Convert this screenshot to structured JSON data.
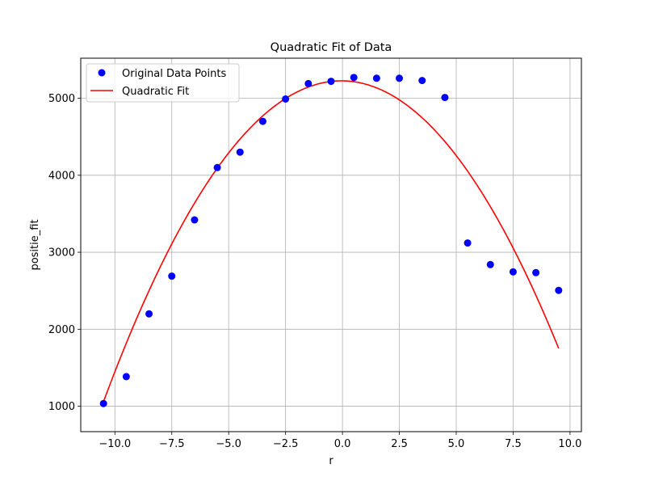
{
  "chart_data": {
    "type": "scatter",
    "title": "Quadratic Fit of Data",
    "xlabel": "r",
    "ylabel": "positie_fit",
    "xlim": [
      -11.5,
      10.5
    ],
    "ylim": [
      670,
      5520
    ],
    "xticks": [
      -10.0,
      -7.5,
      -5.0,
      -2.5,
      0.0,
      2.5,
      5.0,
      7.5,
      10.0
    ],
    "xtick_labels": [
      "−10.0",
      "−7.5",
      "−5.0",
      "−2.5",
      "0.0",
      "2.5",
      "5.0",
      "7.5",
      "10.0"
    ],
    "yticks": [
      1000,
      2000,
      3000,
      4000,
      5000
    ],
    "ytick_labels": [
      "1000",
      "2000",
      "3000",
      "4000",
      "5000"
    ],
    "grid": true,
    "legend_position": "top-left",
    "series": [
      {
        "name": "Original Data Points",
        "kind": "scatter",
        "color": "#0000ff",
        "x": [
          -10.5,
          -9.5,
          -8.5,
          -7.5,
          -6.5,
          -5.5,
          -4.5,
          -3.5,
          -2.5,
          -1.5,
          -0.5,
          0.5,
          1.5,
          2.5,
          3.5,
          4.5,
          5.5,
          6.5,
          7.5,
          8.5,
          9.5
        ],
        "y": [
          1035,
          1385,
          2200,
          2690,
          3420,
          4100,
          4300,
          4700,
          4990,
          5190,
          5220,
          5270,
          5260,
          5260,
          5230,
          5010,
          3120,
          2840,
          2745,
          2735,
          2505
        ]
      },
      {
        "name": "Quadratic Fit",
        "kind": "line",
        "color": "#ff0000",
        "equation": {
          "a": -38.13,
          "b": -3.52,
          "c": 5226
        },
        "x_range": [
          -10.5,
          9.5
        ]
      }
    ]
  }
}
